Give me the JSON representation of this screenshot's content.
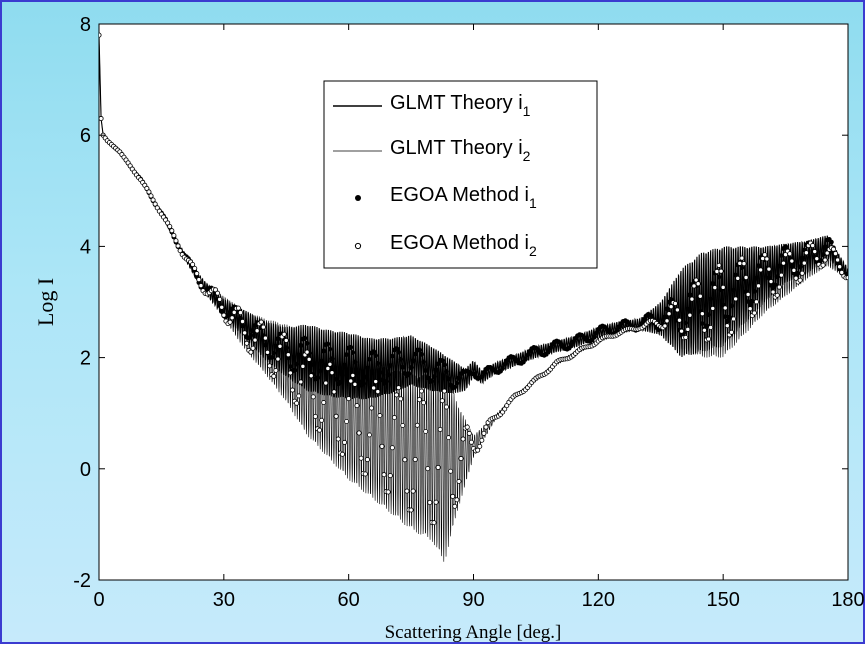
{
  "chart_data": {
    "type": "line",
    "title": "",
    "xlabel": "Scattering Angle [deg.]",
    "ylabel": "Log I",
    "xlim": [
      0,
      180
    ],
    "ylim": [
      -2,
      8
    ],
    "xticks": [
      0,
      30,
      60,
      90,
      120,
      150,
      180
    ],
    "yticks": [
      -2,
      0,
      2,
      4,
      6,
      8
    ],
    "xtick_labels": [
      "0",
      "30",
      "60",
      "90",
      "120",
      "150",
      "180"
    ],
    "ytick_labels": [
      "-2",
      "0",
      "2",
      "4",
      "6",
      "8"
    ],
    "grid": false,
    "legend_position": "top-center",
    "legend": [
      {
        "base": "GLMT Theory i",
        "sub": "1",
        "marker": "thick-line"
      },
      {
        "base": "GLMT Theory i",
        "sub": "2",
        "marker": "thin-line"
      },
      {
        "base": "EGOA Method i",
        "sub": "1",
        "marker": "filled-dot"
      },
      {
        "base": "EGOA Method i",
        "sub": "2",
        "marker": "open-dot"
      }
    ],
    "series": [
      {
        "name": "GLMT Theory i1",
        "style": "line",
        "x": [
          0,
          0.5,
          1,
          2,
          5,
          10,
          15,
          20,
          25,
          30,
          35,
          40,
          45,
          50,
          55,
          60,
          65,
          70,
          75,
          80,
          85,
          88,
          90,
          92,
          95,
          100,
          105,
          110,
          115,
          120,
          125,
          130,
          135,
          140,
          145,
          150,
          155,
          160,
          165,
          170,
          175,
          180
        ],
        "y": [
          7.8,
          6.3,
          6.0,
          5.9,
          5.7,
          5.2,
          4.6,
          3.9,
          3.3,
          2.9,
          2.6,
          2.3,
          2.1,
          2.0,
          1.9,
          1.85,
          1.8,
          1.85,
          1.95,
          1.8,
          1.65,
          1.6,
          1.8,
          1.65,
          1.8,
          1.95,
          2.1,
          2.2,
          2.3,
          2.45,
          2.55,
          2.6,
          2.7,
          2.8,
          3.0,
          3.1,
          3.3,
          3.5,
          3.7,
          3.8,
          4.0,
          3.5
        ],
        "amplitude": [
          0,
          0,
          0,
          0,
          0,
          0.02,
          0.03,
          0.05,
          0.1,
          0.15,
          0.25,
          0.35,
          0.45,
          0.6,
          0.6,
          0.6,
          0.55,
          0.5,
          0.45,
          0.4,
          0.3,
          0.2,
          0.15,
          0.12,
          0.1,
          0.1,
          0.1,
          0.1,
          0.1,
          0.1,
          0.1,
          0.1,
          0.3,
          0.8,
          0.9,
          0.9,
          0.7,
          0.5,
          0.35,
          0.3,
          0.2,
          0.1
        ]
      },
      {
        "name": "GLMT Theory i2",
        "style": "line",
        "x": [
          0,
          0.5,
          1,
          2,
          5,
          10,
          15,
          20,
          25,
          30,
          35,
          40,
          45,
          50,
          55,
          60,
          65,
          70,
          75,
          80,
          83,
          86,
          90,
          95,
          100,
          105,
          110,
          115,
          120,
          125,
          130,
          135,
          140,
          145,
          150,
          155,
          160,
          165,
          170,
          175,
          180
        ],
        "y": [
          7.8,
          6.3,
          6.0,
          5.9,
          5.7,
          5.2,
          4.6,
          3.9,
          3.3,
          2.9,
          2.5,
          2.2,
          1.9,
          1.5,
          1.2,
          0.9,
          0.7,
          0.5,
          0.3,
          0.2,
          0.1,
          0.2,
          0.4,
          0.9,
          1.3,
          1.6,
          1.9,
          2.1,
          2.3,
          2.45,
          2.55,
          2.65,
          2.75,
          2.9,
          3.0,
          3.2,
          3.4,
          3.55,
          3.75,
          3.9,
          3.5
        ],
        "amplitude": [
          0,
          0,
          0,
          0,
          0,
          0.02,
          0.03,
          0.05,
          0.1,
          0.2,
          0.35,
          0.5,
          0.7,
          0.9,
          1.0,
          1.1,
          1.2,
          1.3,
          1.4,
          1.5,
          1.8,
          1.0,
          0.2,
          0.05,
          0.03,
          0.03,
          0.03,
          0.03,
          0.03,
          0.03,
          0.03,
          0.1,
          0.6,
          0.9,
          1.0,
          0.8,
          0.6,
          0.45,
          0.35,
          0.25,
          0.1
        ]
      },
      {
        "name": "EGOA Method i1",
        "style": "filled-dot",
        "x": [
          0,
          0.5,
          1,
          2,
          5,
          10,
          15,
          20,
          25,
          30,
          35,
          40,
          45,
          50,
          55,
          60,
          65,
          70,
          75,
          80,
          85,
          88,
          90,
          92,
          95,
          100,
          105,
          110,
          115,
          120,
          125,
          130,
          135,
          140,
          145,
          150,
          155,
          160,
          165,
          170,
          175,
          180
        ],
        "y": [
          7.8,
          6.3,
          6.0,
          5.9,
          5.7,
          5.2,
          4.6,
          3.9,
          3.3,
          2.9,
          2.6,
          2.3,
          2.1,
          2.0,
          1.9,
          1.85,
          1.8,
          1.85,
          1.95,
          1.8,
          1.65,
          1.6,
          1.8,
          1.65,
          1.8,
          1.95,
          2.1,
          2.2,
          2.3,
          2.45,
          2.55,
          2.6,
          2.7,
          2.8,
          3.0,
          3.1,
          3.3,
          3.5,
          3.7,
          3.8,
          4.0,
          3.5
        ],
        "amplitude": [
          0,
          0,
          0,
          0,
          0,
          0.02,
          0.03,
          0.05,
          0.1,
          0.15,
          0.2,
          0.25,
          0.3,
          0.35,
          0.35,
          0.35,
          0.3,
          0.3,
          0.25,
          0.25,
          0.2,
          0.15,
          0.12,
          0.1,
          0.1,
          0.1,
          0.1,
          0.1,
          0.1,
          0.1,
          0.1,
          0.1,
          0.2,
          0.4,
          0.5,
          0.5,
          0.45,
          0.35,
          0.3,
          0.25,
          0.2,
          0.1
        ]
      },
      {
        "name": "EGOA Method i2",
        "style": "open-dot",
        "x": [
          0,
          0.5,
          1,
          2,
          5,
          10,
          15,
          20,
          25,
          30,
          35,
          40,
          45,
          50,
          55,
          60,
          65,
          70,
          75,
          80,
          83,
          86,
          90,
          95,
          100,
          105,
          110,
          115,
          120,
          125,
          130,
          135,
          140,
          145,
          150,
          155,
          160,
          165,
          170,
          175,
          180
        ],
        "y": [
          7.8,
          6.3,
          6.0,
          5.9,
          5.7,
          5.2,
          4.6,
          3.9,
          3.3,
          2.9,
          2.5,
          2.2,
          1.9,
          1.5,
          1.2,
          0.9,
          0.7,
          0.5,
          0.3,
          0.2,
          0.1,
          0.2,
          0.4,
          0.9,
          1.3,
          1.6,
          1.9,
          2.1,
          2.3,
          2.45,
          2.55,
          2.65,
          2.75,
          2.9,
          3.0,
          3.2,
          3.4,
          3.55,
          3.75,
          3.9,
          3.5
        ],
        "amplitude": [
          0,
          0,
          0,
          0,
          0,
          0.02,
          0.03,
          0.05,
          0.1,
          0.2,
          0.3,
          0.4,
          0.5,
          0.6,
          0.7,
          0.8,
          0.9,
          1.0,
          1.1,
          1.2,
          1.3,
          0.8,
          0.2,
          0.05,
          0.03,
          0.03,
          0.03,
          0.03,
          0.03,
          0.03,
          0.03,
          0.1,
          0.4,
          0.6,
          0.7,
          0.6,
          0.45,
          0.35,
          0.3,
          0.2,
          0.1
        ]
      }
    ]
  },
  "colors": {
    "background_top": "#8fdcef",
    "background_bottom": "#c6eafb",
    "frame_border": "#3b3bd0",
    "plot_background": "#ffffff",
    "series_color": "#000000"
  }
}
